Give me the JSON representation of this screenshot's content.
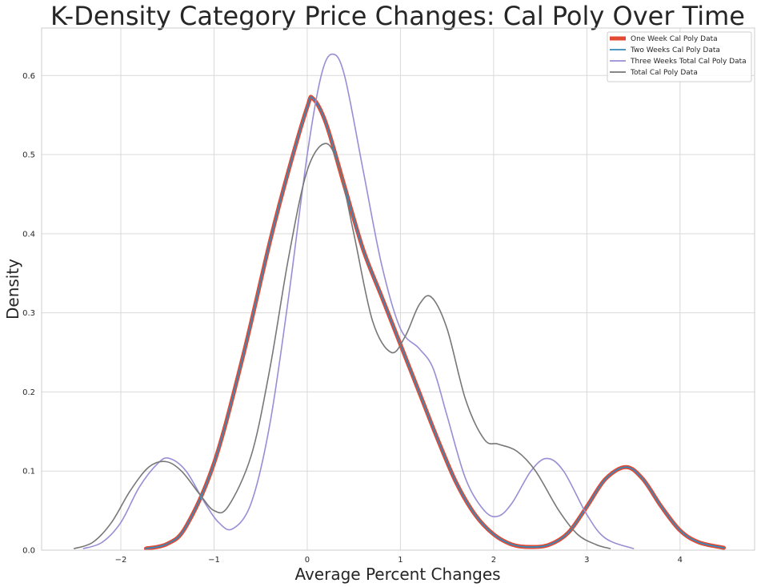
{
  "chart_data": {
    "type": "line",
    "title": "K-Density Category Price Changes: Cal Poly Over Time",
    "xlabel": "Average Percent Changes",
    "ylabel": "Density",
    "xlim": [
      -2.85,
      4.8
    ],
    "ylim": [
      0,
      0.66
    ],
    "xticks": [
      -2,
      -1,
      0,
      1,
      2,
      3,
      4
    ],
    "yticks": [
      0.0,
      0.1,
      0.2,
      0.3,
      0.4,
      0.5,
      0.6
    ],
    "xtick_labels": [
      "−2",
      "−1",
      "0",
      "1",
      "2",
      "3",
      "4"
    ],
    "ytick_labels": [
      "0.0",
      "0.1",
      "0.2",
      "0.3",
      "0.4",
      "0.5",
      "0.6"
    ],
    "grid": true,
    "legend_position": "top-right",
    "series": [
      {
        "name": "One Week Cal Poly Data",
        "color": "#e24a33",
        "x": [
          -1.73,
          -1.5,
          -1.3,
          -1.0,
          -0.7,
          -0.4,
          -0.2,
          0.0,
          0.06,
          0.2,
          0.4,
          0.6,
          0.8,
          1.0,
          1.2,
          1.4,
          1.6,
          1.8,
          2.0,
          2.2,
          2.4,
          2.6,
          2.8,
          3.0,
          3.2,
          3.42,
          3.6,
          3.8,
          4.0,
          4.2,
          4.47
        ],
        "y": [
          0.002,
          0.008,
          0.03,
          0.11,
          0.24,
          0.39,
          0.48,
          0.56,
          0.571,
          0.54,
          0.46,
          0.38,
          0.32,
          0.26,
          0.2,
          0.14,
          0.085,
          0.045,
          0.02,
          0.007,
          0.004,
          0.007,
          0.022,
          0.055,
          0.09,
          0.105,
          0.09,
          0.055,
          0.025,
          0.01,
          0.003
        ]
      },
      {
        "name": "Two Weeks Cal Poly Data",
        "color": "#348abd",
        "x": [
          -1.73,
          -1.5,
          -1.3,
          -1.0,
          -0.7,
          -0.4,
          -0.2,
          0.0,
          0.06,
          0.2,
          0.4,
          0.6,
          0.8,
          1.0,
          1.2,
          1.4,
          1.6,
          1.8,
          2.0,
          2.2,
          2.4,
          2.6,
          2.8,
          3.0,
          3.2,
          3.42,
          3.6,
          3.8,
          4.0,
          4.2,
          4.47
        ],
        "y": [
          0.002,
          0.008,
          0.03,
          0.11,
          0.24,
          0.39,
          0.48,
          0.56,
          0.571,
          0.54,
          0.46,
          0.38,
          0.32,
          0.26,
          0.2,
          0.14,
          0.085,
          0.045,
          0.02,
          0.007,
          0.004,
          0.007,
          0.022,
          0.055,
          0.09,
          0.105,
          0.09,
          0.055,
          0.025,
          0.01,
          0.003
        ]
      },
      {
        "name": "Three Weeks Total Cal Poly Data",
        "color": "#988ed5",
        "x": [
          -2.4,
          -2.2,
          -2.0,
          -1.8,
          -1.6,
          -1.48,
          -1.3,
          -1.1,
          -0.95,
          -0.8,
          -0.6,
          -0.4,
          -0.2,
          0.0,
          0.15,
          0.27,
          0.4,
          0.6,
          0.8,
          1.0,
          1.2,
          1.35,
          1.5,
          1.7,
          1.9,
          2.05,
          2.2,
          2.4,
          2.57,
          2.75,
          3.0,
          3.2,
          3.5
        ],
        "y": [
          0.002,
          0.01,
          0.035,
          0.08,
          0.11,
          0.116,
          0.1,
          0.06,
          0.035,
          0.027,
          0.06,
          0.16,
          0.32,
          0.5,
          0.6,
          0.627,
          0.6,
          0.48,
          0.36,
          0.28,
          0.255,
          0.23,
          0.17,
          0.09,
          0.05,
          0.043,
          0.06,
          0.1,
          0.116,
          0.1,
          0.045,
          0.015,
          0.002
        ]
      },
      {
        "name": "Total Cal Poly Data",
        "color": "#777777",
        "x": [
          -2.5,
          -2.3,
          -2.1,
          -1.9,
          -1.7,
          -1.52,
          -1.35,
          -1.15,
          -1.0,
          -0.85,
          -0.6,
          -0.4,
          -0.2,
          0.0,
          0.2,
          0.35,
          0.5,
          0.7,
          0.9,
          1.05,
          1.2,
          1.33,
          1.5,
          1.7,
          1.9,
          2.05,
          2.25,
          2.45,
          2.7,
          2.9,
          3.1,
          3.25
        ],
        "y": [
          0.002,
          0.01,
          0.035,
          0.075,
          0.105,
          0.112,
          0.1,
          0.07,
          0.05,
          0.055,
          0.12,
          0.23,
          0.37,
          0.48,
          0.514,
          0.48,
          0.4,
          0.29,
          0.25,
          0.27,
          0.31,
          0.32,
          0.28,
          0.19,
          0.14,
          0.134,
          0.125,
          0.1,
          0.05,
          0.02,
          0.007,
          0.002
        ]
      }
    ]
  }
}
